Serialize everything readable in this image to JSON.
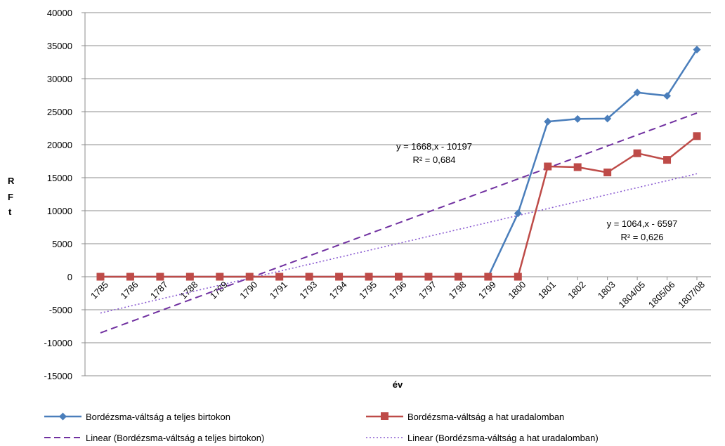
{
  "chart_data": {
    "type": "line",
    "title": "",
    "xlabel": "év",
    "ylabel": "R Ft",
    "ylabel_letters": [
      "R",
      "F",
      "t"
    ],
    "ylim": [
      -15000,
      40000
    ],
    "yticks": [
      "40000",
      "35000",
      "30000",
      "25000",
      "20000",
      "15000",
      "10000",
      "5000",
      "0",
      "-5000",
      "-10000",
      "-15000"
    ],
    "categories": [
      "1785",
      "1786",
      "1787",
      "1788",
      "1789",
      "1790",
      "1791",
      "1793",
      "1794",
      "1795",
      "1796",
      "1797",
      "1798",
      "1799",
      "1800",
      "1801",
      "1802",
      "1803",
      "1804/05",
      "1805/06",
      "1807/08"
    ],
    "grid": true,
    "legend_position": "bottom",
    "series": [
      {
        "name": "Bordézsma-váltság a teljes birtokon",
        "color": "#4a7ebb",
        "marker": "diamond",
        "values": [
          0,
          0,
          0,
          0,
          0,
          0,
          0,
          0,
          0,
          0,
          0,
          0,
          0,
          0,
          9600,
          23500,
          23900,
          23950,
          27900,
          27400,
          34400
        ]
      },
      {
        "name": "Bordézsma-váltság a hat uradalomban",
        "color": "#be4b48",
        "marker": "square",
        "values": [
          0,
          0,
          0,
          0,
          0,
          0,
          0,
          0,
          0,
          0,
          0,
          0,
          0,
          0,
          0,
          16700,
          16600,
          15800,
          18700,
          17700,
          21300
        ]
      }
    ],
    "trendlines": [
      {
        "name": "Linear (Bordézsma-váltság a teljes birtokon)",
        "color": "#7030a0",
        "style": "dashed",
        "start": -8500,
        "end": 24800,
        "equation": "y = 1668,x - 10197",
        "r2": "R² = 0,684"
      },
      {
        "name": "Linear (Bordézsma-váltság a hat uradalomban)",
        "color": "#8a5bd1",
        "style": "dotted",
        "start": -5500,
        "end": 15600,
        "equation": "y = 1064,x - 6597",
        "r2": "R² = 0,626"
      }
    ]
  }
}
